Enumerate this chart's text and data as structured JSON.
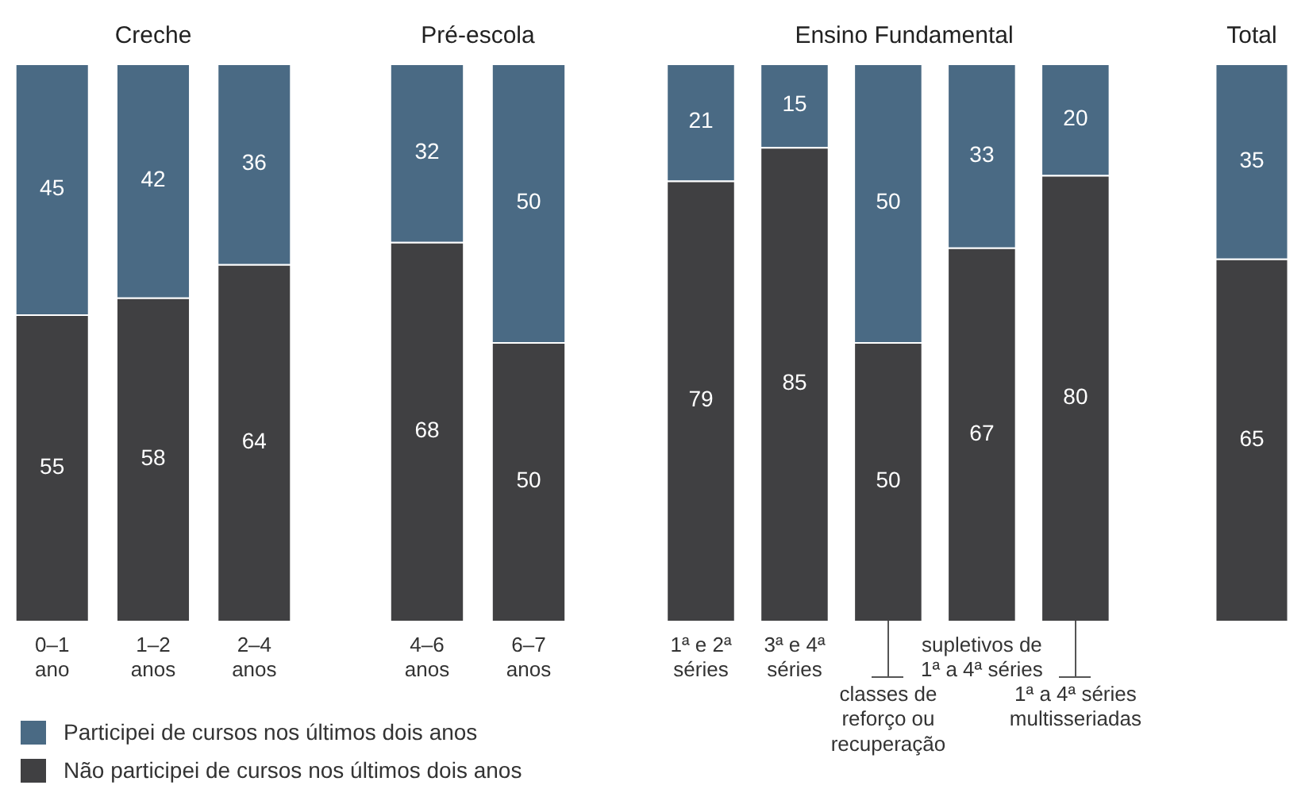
{
  "chart_data": [
    {
      "type": "bar",
      "title": "Creche",
      "categories": [
        "0–1\nano",
        "1–2\nanos",
        "2–4\nanos"
      ],
      "stacked": true,
      "series": [
        {
          "color": "#404042",
          "values": [
            55,
            58,
            64
          ]
        },
        {
          "color": "#4a6a84",
          "values": [
            45,
            42,
            36
          ]
        }
      ],
      "ylim": [
        0,
        100
      ],
      "tick_labels": "x",
      "data_labels": true
    },
    {
      "type": "bar",
      "title": "Pré-escola",
      "categories": [
        "4–6\nanos",
        "6–7\nanos"
      ],
      "stacked": true,
      "series": [
        {
          "name": "Não participei de cursos nos últimos dois anos",
          "color": "#404042",
          "values": [
            68,
            50
          ]
        },
        {
          "name": "Participei de cursos nos últimos dois anos",
          "color": "#4a6a84",
          "values": [
            32,
            50
          ]
        }
      ],
      "ylim": [
        0,
        100
      ],
      "tick_labels": "x",
      "data_labels": true,
      "legend": "bottom left"
    },
    {
      "type": "bar",
      "title": "Ensino Fundamental",
      "categories": [
        "1ª e 2ª\nséries",
        "3ª e 4ª\nséries",
        "classes de\nreforço ou\nrecuperação",
        "supletivos de\n1ª a 4ª séries",
        "1ª a 4ª séries\nmultisseriadas"
      ],
      "stacked": true,
      "series": [
        {
          "color": "#404042",
          "values": [
            79,
            85,
            50,
            67,
            80
          ]
        },
        {
          "color": "#4a6a84",
          "values": [
            21,
            15,
            50,
            33,
            20
          ]
        }
      ],
      "ylim": [
        0,
        100
      ],
      "tick_labels": "x",
      "data_labels": true
    },
    {
      "type": "bar",
      "title": "Total",
      "categories": [
        null
      ],
      "stacked": true,
      "series": [
        {
          "color": "#404042",
          "values": [
            65
          ]
        },
        {
          "color": "#4a6a84",
          "values": [
            35
          ]
        }
      ],
      "ylim": [
        0,
        100
      ],
      "tick_labels": "x",
      "data_labels": true
    }
  ]
}
